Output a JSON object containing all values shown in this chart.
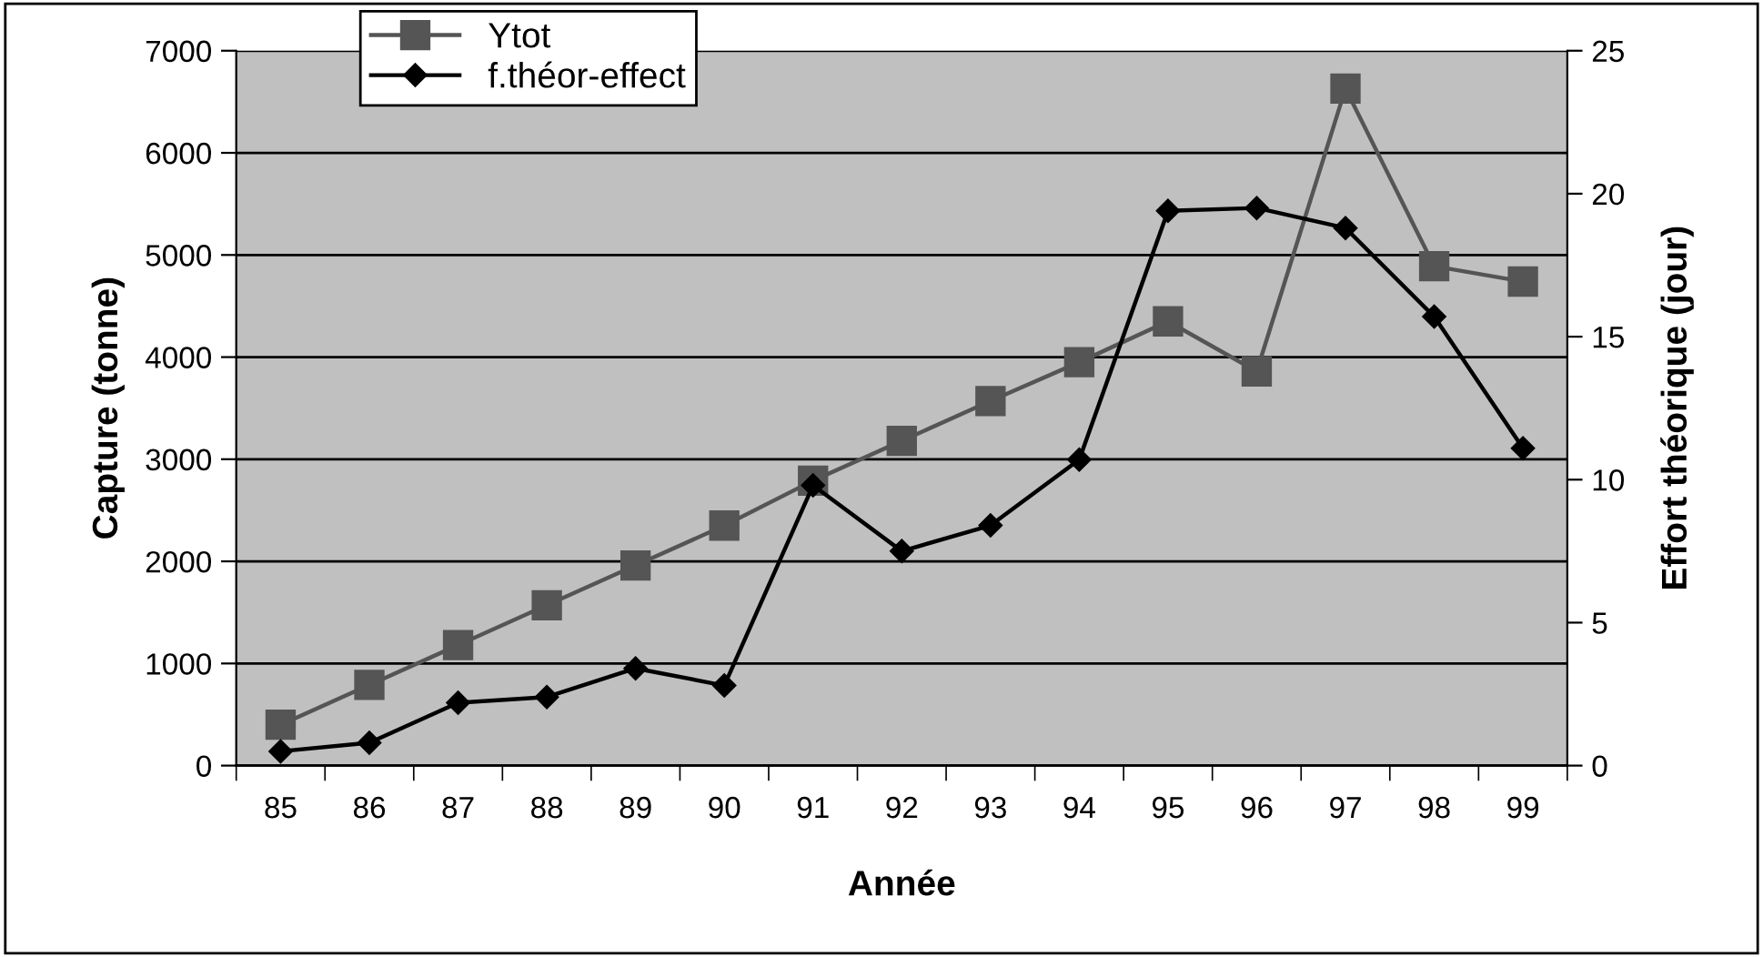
{
  "chart_data": {
    "type": "line",
    "xlabel": "Année",
    "ylabel": "Capture (tonne)",
    "y2label": "Effort théorique (jour)",
    "categories": [
      "85",
      "86",
      "87",
      "88",
      "89",
      "90",
      "91",
      "92",
      "93",
      "94",
      "95",
      "96",
      "97",
      "98",
      "99"
    ],
    "series": [
      {
        "name": "Ytot",
        "color": "#555555",
        "marker": "square",
        "values": [
          400,
          790,
          1180,
          1570,
          1960,
          2350,
          2790,
          3180,
          3570,
          3950,
          4350,
          3860,
          6630,
          4890,
          4740
        ]
      },
      {
        "name": "f.théor-effect",
        "color": "#000000",
        "marker": "diamond",
        "axis": "y2",
        "values": [
          0.5,
          0.8,
          2.2,
          2.4,
          3.4,
          2.8,
          9.8,
          7.5,
          8.4,
          10.7,
          19.4,
          19.5,
          18.8,
          15.7,
          11.1
        ]
      }
    ],
    "ylim": [
      0,
      7000
    ],
    "yticks": [
      0,
      1000,
      2000,
      3000,
      4000,
      5000,
      6000,
      7000
    ],
    "y2lim": [
      0,
      25
    ],
    "y2ticks": [
      0,
      5,
      10,
      15,
      20,
      25
    ],
    "grid": "y",
    "legend": "top left"
  }
}
